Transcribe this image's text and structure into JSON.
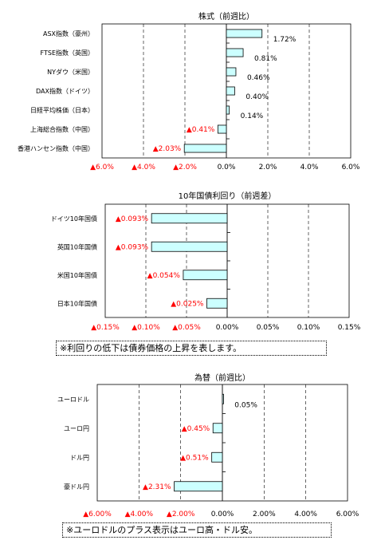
{
  "colors": {
    "bar_fill": "#ccffff",
    "bar_stroke": "#000000",
    "negative_text": "#ff0000",
    "positive_text": "#000000"
  },
  "chart_data": [
    {
      "type": "bar",
      "orientation": "horizontal",
      "title": "株式（前週比）",
      "categories": [
        "ASX指数（豪州）",
        "FTSE指数（英国）",
        "NYダウ（米国）",
        "DAX指数（ドイツ）",
        "日経平均株価（日本）",
        "上海総合指数（中国）",
        "香港ハンセン指数（中国）"
      ],
      "values": [
        1.72,
        0.81,
        0.46,
        0.4,
        0.14,
        -0.41,
        -2.03
      ],
      "data_labels": [
        "1.72%",
        "0.81%",
        "0.46%",
        "0.40%",
        "0.14%",
        "▲0.41%",
        "▲2.03%"
      ],
      "xlim": [
        -6,
        6
      ],
      "ticks": [
        -6,
        -4,
        -2,
        0,
        2,
        4,
        6
      ],
      "tick_labels": [
        "▲6.0%",
        "▲4.0%",
        "▲2.0%",
        "0.0%",
        "2.0%",
        "4.0%",
        "6.0%"
      ],
      "grid": "vertical dashed"
    },
    {
      "type": "bar",
      "orientation": "horizontal",
      "title": "10年国債利回り（前週差）",
      "categories": [
        "ドイツ10年国債",
        "英国10年国債",
        "米国10年国債",
        "日本10年国債"
      ],
      "values": [
        -0.093,
        -0.093,
        -0.054,
        -0.025
      ],
      "data_labels": [
        "▲0.093%",
        "▲0.093%",
        "▲0.054%",
        "▲0.025%"
      ],
      "xlim": [
        -0.15,
        0.15
      ],
      "ticks": [
        -0.15,
        -0.1,
        -0.05,
        0,
        0.05,
        0.1,
        0.15
      ],
      "tick_labels": [
        "▲0.15%",
        "▲0.10%",
        "▲0.05%",
        "0.00%",
        "0.05%",
        "0.10%",
        "0.15%"
      ],
      "grid": "vertical dashed",
      "note": "※利回りの低下は債券価格の上昇を表します。"
    },
    {
      "type": "bar",
      "orientation": "horizontal",
      "title": "為替（前週比）",
      "categories": [
        "ユーロドル",
        "ユーロ円",
        "ドル円",
        "豪ドル円"
      ],
      "values": [
        0.05,
        -0.45,
        -0.51,
        -2.31
      ],
      "data_labels": [
        "0.05%",
        "▲0.45%",
        "▲0.51%",
        "▲2.31%"
      ],
      "xlim": [
        -6,
        6
      ],
      "ticks": [
        -6,
        -4,
        -2,
        0,
        2,
        4,
        6
      ],
      "tick_labels": [
        "▲6.00%",
        "▲4.00%",
        "▲2.00%",
        "0.00%",
        "2.00%",
        "4.00%",
        "6.00%"
      ],
      "grid": "vertical dashed",
      "note": "※ユーロドルのプラス表示はユーロ高・ドル安。"
    }
  ]
}
